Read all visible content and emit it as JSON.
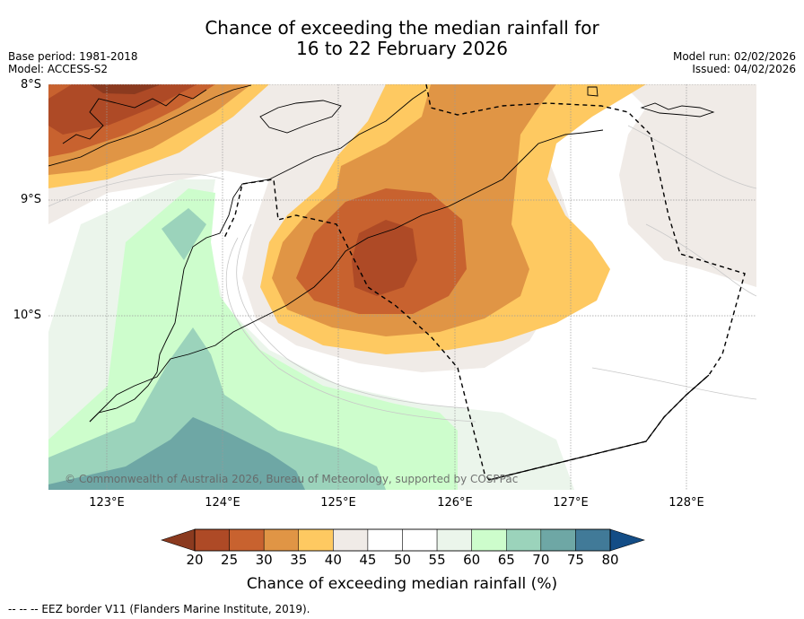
{
  "title_line1": "Chance of exceeding the median rainfall for",
  "title_line2": "16 to 22 February 2026",
  "meta": {
    "base_period": "Base period: 1981-2018",
    "model": "Model: ACCESS-S2",
    "model_run": "Model run: 02/02/2026",
    "issued": "Issued: 04/02/2026"
  },
  "map": {
    "lat_labels": [
      "8°S",
      "9°S",
      "10°S"
    ],
    "lon_labels": [
      "123°E",
      "124°E",
      "125°E",
      "126°E",
      "127°E",
      "128°E"
    ],
    "credit": "© Commonwealth of Australia 2026, Bureau of Meteorology, supported by COSPPac"
  },
  "colorbar": {
    "title": "Chance of exceeding median rainfall (%)",
    "ticks": [
      "20",
      "25",
      "30",
      "35",
      "40",
      "45",
      "50",
      "55",
      "60",
      "65",
      "70",
      "75",
      "80"
    ],
    "colors": [
      "#8b3a1f",
      "#ae4a26",
      "#c8622f",
      "#e09545",
      "#fec961",
      "#f0ebe7",
      "#ffffff",
      "#ffffff",
      "#ebf5eb",
      "#cdfdcc",
      "#9bd3bb",
      "#6ea7a5",
      "#417a98",
      "#134d86"
    ]
  },
  "footnote": "--  --  -- EEZ border V11 (Flanders Marine Institute, 2019)."
}
